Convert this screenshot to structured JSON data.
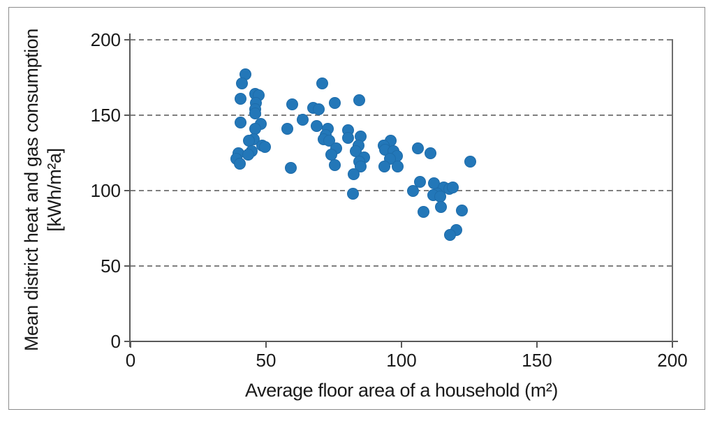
{
  "chart_data": {
    "type": "scatter",
    "title": "",
    "xlabel": "Average floor area of a household (m²)",
    "ylabel_line1": "Mean district heat and gas consumption",
    "ylabel_line2": "[kWh/m²a]",
    "xlim": [
      0,
      200
    ],
    "ylim": [
      0,
      200
    ],
    "xticks": [
      0,
      50,
      100,
      150,
      200
    ],
    "yticks": [
      0,
      50,
      100,
      150,
      200
    ],
    "grid": "horizontal dashed gridlines at 50, 100, 150, 200; no vertical gridlines",
    "legend": "none",
    "marker_color": "#2377b8",
    "gridline_color": "#7f7f7f",
    "axis_color": "#595959",
    "series_name": "Mean district heat and gas consumption vs average floor area",
    "points": [
      [
        42.4,
        177
      ],
      [
        41.2,
        171
      ],
      [
        45.9,
        164
      ],
      [
        47.3,
        163
      ],
      [
        40.7,
        161
      ],
      [
        46.3,
        158
      ],
      [
        45.9,
        154
      ],
      [
        45.9,
        151
      ],
      [
        40.7,
        145
      ],
      [
        48,
        144
      ],
      [
        45.9,
        141
      ],
      [
        45.4,
        134
      ],
      [
        43.7,
        133
      ],
      [
        48.5,
        130
      ],
      [
        49.7,
        129
      ],
      [
        44.6,
        126
      ],
      [
        39.9,
        125
      ],
      [
        43.5,
        124
      ],
      [
        39,
        121
      ],
      [
        40.3,
        118
      ],
      [
        59.6,
        157
      ],
      [
        57.9,
        141
      ],
      [
        59.2,
        115
      ],
      [
        63.5,
        147
      ],
      [
        67.4,
        155
      ],
      [
        69.5,
        154
      ],
      [
        70.8,
        171
      ],
      [
        68.6,
        143
      ],
      [
        72.9,
        141
      ],
      [
        72.1,
        137
      ],
      [
        71.2,
        134
      ],
      [
        73.4,
        133
      ],
      [
        76,
        128
      ],
      [
        74.2,
        124
      ],
      [
        75.5,
        117
      ],
      [
        75.5,
        158
      ],
      [
        84.5,
        160
      ],
      [
        80.2,
        140
      ],
      [
        80.2,
        135
      ],
      [
        85,
        136
      ],
      [
        84.1,
        130
      ],
      [
        83.2,
        126
      ],
      [
        86.3,
        122
      ],
      [
        84.5,
        119
      ],
      [
        85,
        116
      ],
      [
        82.4,
        111
      ],
      [
        82,
        98
      ],
      [
        96.1,
        133
      ],
      [
        93.3,
        130
      ],
      [
        94,
        127
      ],
      [
        97,
        126
      ],
      [
        98.3,
        123
      ],
      [
        95.7,
        121
      ],
      [
        93.6,
        116
      ],
      [
        98.7,
        116
      ],
      [
        106,
        128
      ],
      [
        110.7,
        125
      ],
      [
        125.3,
        119
      ],
      [
        106.9,
        106
      ],
      [
        112,
        105
      ],
      [
        115.5,
        102
      ],
      [
        117.6,
        101
      ],
      [
        118.9,
        102
      ],
      [
        104.3,
        100
      ],
      [
        113.3,
        98
      ],
      [
        111.6,
        97
      ],
      [
        114.2,
        96
      ],
      [
        114.6,
        89
      ],
      [
        108.2,
        86
      ],
      [
        122.3,
        87
      ],
      [
        120.2,
        74
      ],
      [
        118,
        70.5
      ]
    ]
  }
}
